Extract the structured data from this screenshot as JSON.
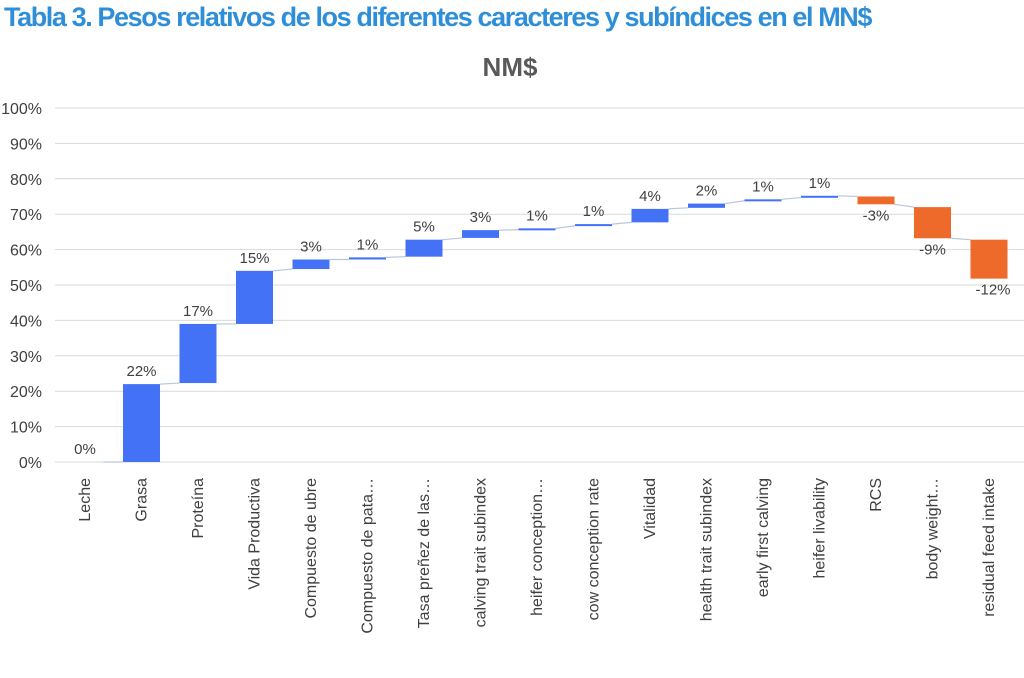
{
  "page": {
    "heading": "Tabla 3. Pesos relativos de los diferentes caracteres y subíndices en el MN$"
  },
  "chart_data": {
    "type": "waterfall",
    "title": "NM$",
    "xlabel": "",
    "ylabel": "",
    "ylim": [
      0,
      100
    ],
    "ytick_labels": [
      "0%",
      "10%",
      "20%",
      "30%",
      "40%",
      "50%",
      "60%",
      "70%",
      "80%",
      "90%",
      "100%"
    ],
    "grid": true,
    "legend": "none",
    "colors": {
      "increase": "#4472f7",
      "decrease": "#ed6a2b",
      "connector": "#b9c7dd",
      "grid": "#d9d9d9"
    },
    "categories": [
      "Leche",
      "Grasa",
      "Proteína",
      "Vida Productiva",
      "Compuesto de ubre",
      "Compuesto de pata…",
      "Tasa preñez de las…",
      "calving trait subindex",
      "heifer conception…",
      "cow conception rate",
      "Vitalidad",
      "health trait subindex",
      "early first calving",
      "heifer livability",
      "RCS",
      "body weight…",
      "residual feed intake"
    ],
    "values": [
      0,
      22,
      17,
      15,
      3,
      1,
      5,
      3,
      1,
      1,
      4,
      2,
      1,
      1,
      -3,
      -9,
      -12
    ],
    "data_labels": [
      "0%",
      "22%",
      "17%",
      "15%",
      "3%",
      "1%",
      "5%",
      "3%",
      "1%",
      "1%",
      "4%",
      "2%",
      "1%",
      "1%",
      "-3%",
      "-9%",
      "-12%"
    ],
    "bar_ranges": [
      [
        0,
        0
      ],
      [
        0,
        22
      ],
      [
        22.3,
        39
      ],
      [
        39,
        54
      ],
      [
        54.5,
        57.2
      ],
      [
        57.2,
        57.8
      ],
      [
        58,
        62.8
      ],
      [
        63.3,
        65.5
      ],
      [
        65.6,
        66
      ],
      [
        66.7,
        67.2
      ],
      [
        67.7,
        71.5
      ],
      [
        71.8,
        73
      ],
      [
        73.8,
        74.2
      ],
      [
        74.7,
        75.2
      ],
      [
        72.8,
        75
      ],
      [
        63.2,
        72
      ],
      [
        51.8,
        62.8
      ]
    ]
  }
}
